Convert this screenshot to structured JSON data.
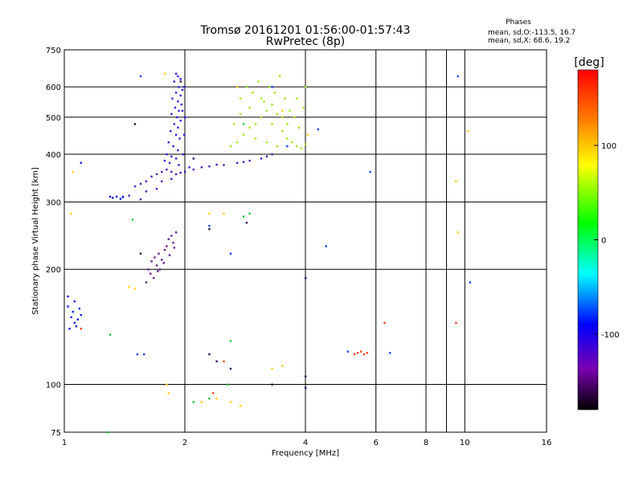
{
  "header": {
    "title_line1": "Tromsø 20161201 01:56:00-01:57:43",
    "title_line2": "RwPretec (8p)",
    "phases_title": "Phases",
    "phases_line1": "mean, sd,O:-113.5, 16.7",
    "phases_line2": "mean, sd,X:  68.6, 19.2"
  },
  "chart_data": {
    "type": "scatter",
    "title": "Tromsø 20161201 01:56:00-01:57:43",
    "subtitle": "RwPretec (8p)",
    "xlabel": "Frequency [MHz]",
    "ylabel": "Stationary phase Virtual Height [km]",
    "x_scale": "log",
    "y_scale": "log",
    "xlim": [
      1,
      16
    ],
    "ylim": [
      75,
      750
    ],
    "x_ticks": [
      1,
      2,
      4,
      6,
      8,
      10,
      16
    ],
    "x_tick_labels": [
      "1",
      "2",
      "4",
      "6",
      "8",
      "10",
      "16"
    ],
    "x_minor_ticks": [
      9
    ],
    "y_ticks": [
      75,
      100,
      200,
      300,
      400,
      500,
      600,
      750
    ],
    "y_tick_labels": [
      "75",
      "100",
      "200",
      "300",
      "400",
      "500",
      "600",
      "750"
    ],
    "grid": true,
    "colorbar": {
      "label": "[deg]",
      "min": -180,
      "max": 180,
      "ticks": [
        -100,
        0,
        100
      ],
      "tick_labels": [
        "-100",
        "0",
        "100"
      ],
      "colors": [
        "#000000",
        "#7a00b0",
        "#0000ff",
        "#00ffff",
        "#00ff00",
        "#ffff00",
        "#ff8000",
        "#ff0000"
      ]
    },
    "series": [
      {
        "color": "#3020e0",
        "points": [
          [
            1.9,
            650
          ],
          [
            1.92,
            640
          ],
          [
            1.95,
            630
          ],
          [
            1.88,
            620
          ],
          [
            1.93,
            600
          ],
          [
            1.97,
            590
          ],
          [
            1.9,
            580
          ],
          [
            1.95,
            570
          ],
          [
            1.86,
            560
          ],
          [
            1.92,
            550
          ],
          [
            1.96,
            540
          ],
          [
            1.89,
            530
          ],
          [
            1.93,
            520
          ],
          [
            1.85,
            510
          ],
          [
            1.91,
            500
          ],
          [
            1.95,
            490
          ],
          [
            1.88,
            480
          ],
          [
            1.92,
            470
          ],
          [
            1.84,
            460
          ],
          [
            1.9,
            450
          ],
          [
            1.94,
            440
          ],
          [
            1.82,
            430
          ],
          [
            1.87,
            420
          ],
          [
            1.92,
            410
          ],
          [
            1.8,
            400
          ],
          [
            1.85,
            395
          ],
          [
            1.9,
            390
          ],
          [
            1.78,
            385
          ],
          [
            1.83,
            380
          ],
          [
            1.93,
            375
          ],
          [
            1.98,
            400
          ],
          [
            1.99,
            450
          ],
          [
            2.0,
            500
          ],
          [
            1.97,
            520
          ],
          [
            1.99,
            600
          ]
        ]
      },
      {
        "color": "#5018b8",
        "points": [
          [
            1.5,
            330
          ],
          [
            1.55,
            335
          ],
          [
            1.6,
            340
          ],
          [
            1.65,
            350
          ],
          [
            1.7,
            355
          ],
          [
            1.75,
            360
          ],
          [
            1.8,
            365
          ],
          [
            1.85,
            360
          ],
          [
            1.9,
            355
          ],
          [
            1.95,
            358
          ],
          [
            2.0,
            360
          ],
          [
            2.1,
            365
          ],
          [
            2.2,
            370
          ],
          [
            2.3,
            372
          ],
          [
            2.5,
            375
          ],
          [
            2.7,
            380
          ],
          [
            2.9,
            385
          ],
          [
            3.1,
            390
          ],
          [
            3.3,
            400
          ],
          [
            1.4,
            310
          ],
          [
            1.45,
            312
          ],
          [
            1.55,
            305
          ],
          [
            1.6,
            320
          ],
          [
            1.7,
            325
          ],
          [
            1.75,
            340
          ],
          [
            1.85,
            345
          ],
          [
            2.05,
            370
          ],
          [
            2.4,
            376
          ],
          [
            2.8,
            382
          ],
          [
            3.2,
            395
          ]
        ]
      },
      {
        "color": "#1020e0",
        "points": [
          [
            1.3,
            310
          ],
          [
            1.32,
            308
          ],
          [
            1.35,
            310
          ],
          [
            1.38,
            306
          ],
          [
            1.4,
            309
          ],
          [
            1.02,
            160
          ],
          [
            1.04,
            150
          ],
          [
            1.06,
            145
          ],
          [
            1.05,
            155
          ],
          [
            1.08,
            148
          ],
          [
            1.1,
            152
          ],
          [
            1.03,
            140
          ],
          [
            1.07,
            142
          ],
          [
            1.09,
            158
          ],
          [
            1.02,
            170
          ],
          [
            1.06,
            165
          ],
          [
            1.1,
            380
          ]
        ]
      },
      {
        "color": "#602090",
        "points": [
          [
            1.62,
            200
          ],
          [
            1.65,
            210
          ],
          [
            1.68,
            215
          ],
          [
            1.7,
            205
          ],
          [
            1.72,
            220
          ],
          [
            1.75,
            212
          ],
          [
            1.78,
            225
          ],
          [
            1.8,
            230
          ],
          [
            1.82,
            240
          ],
          [
            1.85,
            245
          ],
          [
            1.87,
            235
          ],
          [
            1.9,
            250
          ],
          [
            1.64,
            195
          ],
          [
            1.67,
            190
          ],
          [
            1.73,
            200
          ],
          [
            1.77,
            208
          ],
          [
            1.83,
            218
          ],
          [
            1.88,
            228
          ],
          [
            1.6,
            185
          ],
          [
            1.71,
            198
          ]
        ]
      },
      {
        "color": "#a0e820",
        "points": [
          [
            2.6,
            420
          ],
          [
            2.7,
            430
          ],
          [
            2.8,
            450
          ],
          [
            2.9,
            470
          ],
          [
            3.0,
            480
          ],
          [
            3.1,
            500
          ],
          [
            3.2,
            520
          ],
          [
            3.3,
            540
          ],
          [
            3.4,
            510
          ],
          [
            3.5,
            460
          ],
          [
            3.6,
            440
          ],
          [
            3.7,
            430
          ],
          [
            3.8,
            420
          ],
          [
            3.9,
            415
          ],
          [
            4.0,
            425
          ],
          [
            2.75,
            560
          ],
          [
            2.85,
            600
          ],
          [
            2.95,
            580
          ],
          [
            3.05,
            620
          ],
          [
            3.15,
            550
          ],
          [
            3.25,
            600
          ],
          [
            3.35,
            580
          ],
          [
            3.45,
            640
          ],
          [
            3.55,
            560
          ],
          [
            3.65,
            520
          ],
          [
            3.75,
            500
          ],
          [
            3.85,
            470
          ],
          [
            3.95,
            530
          ],
          [
            3.0,
            440
          ],
          [
            3.2,
            430
          ],
          [
            3.4,
            420
          ],
          [
            3.6,
            480
          ],
          [
            3.8,
            560
          ],
          [
            4.0,
            600
          ],
          [
            2.65,
            480
          ],
          [
            2.75,
            510
          ],
          [
            2.9,
            530
          ],
          [
            3.1,
            560
          ],
          [
            3.3,
            480
          ],
          [
            3.5,
            500
          ]
        ]
      },
      {
        "color": "#ffd020",
        "points": [
          [
            1.78,
            650
          ],
          [
            2.7,
            600
          ],
          [
            3.5,
            520
          ],
          [
            4.05,
            450
          ],
          [
            10.2,
            460
          ],
          [
            1.82,
            95
          ],
          [
            1.8,
            100
          ],
          [
            2.2,
            90
          ],
          [
            2.4,
            92
          ],
          [
            2.6,
            90
          ],
          [
            2.75,
            88
          ],
          [
            3.3,
            110
          ],
          [
            3.5,
            112
          ],
          [
            9.5,
            340
          ],
          [
            9.6,
            250
          ],
          [
            1.04,
            280
          ],
          [
            1.05,
            360
          ],
          [
            1.5,
            480
          ],
          [
            2.3,
            280
          ],
          [
            2.5,
            280
          ],
          [
            1.45,
            180
          ],
          [
            1.5,
            178
          ]
        ]
      },
      {
        "color": "#20c840",
        "points": [
          [
            1.48,
            270
          ],
          [
            2.1,
            90
          ],
          [
            2.3,
            92
          ],
          [
            2.55,
            100
          ],
          [
            2.8,
            275
          ],
          [
            2.9,
            280
          ],
          [
            1.3,
            135
          ],
          [
            1.28,
            75
          ],
          [
            2.6,
            130
          ],
          [
            2.8,
            480
          ]
        ]
      },
      {
        "color": "#ff4020",
        "points": [
          [
            5.3,
            120
          ],
          [
            5.4,
            121
          ],
          [
            5.5,
            122
          ],
          [
            5.6,
            120
          ],
          [
            5.7,
            121
          ],
          [
            6.3,
            145
          ],
          [
            9.5,
            145
          ],
          [
            2.5,
            115
          ],
          [
            2.35,
            95
          ],
          [
            1.1,
            140
          ]
        ]
      },
      {
        "color": "#2040ff",
        "points": [
          [
            1.55,
            640
          ],
          [
            5.8,
            360
          ],
          [
            9.6,
            640
          ],
          [
            10.3,
            185
          ],
          [
            4.3,
            465
          ],
          [
            4.5,
            230
          ],
          [
            6.5,
            121
          ],
          [
            5.1,
            122
          ],
          [
            1.52,
            120
          ],
          [
            1.58,
            120
          ],
          [
            2.3,
            260
          ],
          [
            2.6,
            220
          ],
          [
            3.3,
            600
          ],
          [
            3.6,
            420
          ]
        ]
      },
      {
        "color": "#301050",
        "points": [
          [
            4.0,
            190
          ],
          [
            4.0,
            105
          ],
          [
            4.0,
            98
          ],
          [
            3.3,
            100
          ],
          [
            2.6,
            110
          ],
          [
            2.4,
            115
          ],
          [
            2.3,
            120
          ],
          [
            2.85,
            265
          ],
          [
            2.3,
            255
          ],
          [
            1.55,
            220
          ],
          [
            1.5,
            480
          ],
          [
            1.95,
            620
          ],
          [
            2.1,
            390
          ]
        ]
      }
    ]
  }
}
